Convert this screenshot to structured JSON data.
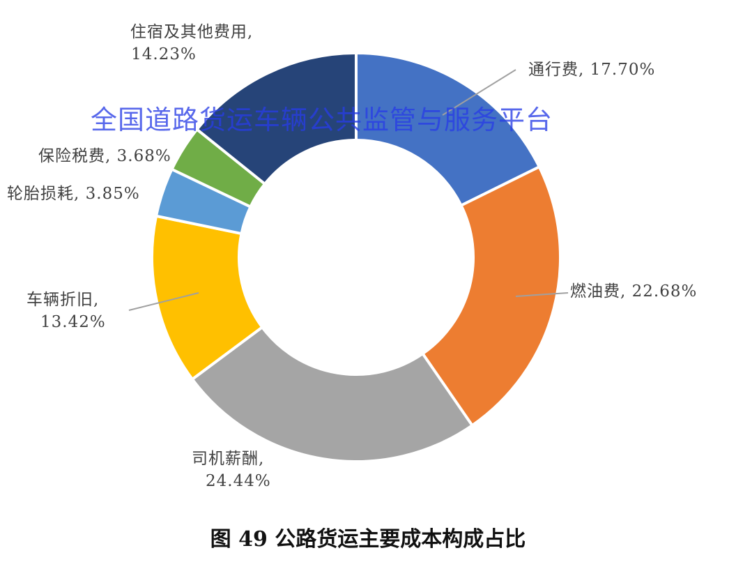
{
  "chart_data": {
    "type": "pie",
    "donut": true,
    "title": "图 49  公路货运主要成本构成占比",
    "unit": "%",
    "slices": [
      {
        "name": "通行费",
        "value": 17.7,
        "label": "17.70%",
        "color": "#4472C4"
      },
      {
        "name": "燃油费",
        "value": 22.68,
        "label": "22.68%",
        "color": "#ED7D31"
      },
      {
        "name": "司机薪酬",
        "value": 24.44,
        "label": "24.44%",
        "color": "#A5A5A5"
      },
      {
        "name": "车辆折旧",
        "value": 13.42,
        "label": "13.42%",
        "color": "#FFC000"
      },
      {
        "name": "轮胎损耗",
        "value": 3.85,
        "label": "3.85%",
        "color": "#5B9BD5"
      },
      {
        "name": "保险税费",
        "value": 3.68,
        "label": "3.68%",
        "color": "#70AD47"
      },
      {
        "name": "住宿及其他费用",
        "value": 14.23,
        "label": "14.23%",
        "color": "#264478"
      }
    ],
    "start": "top",
    "direction": "clockwise",
    "legend": "none"
  },
  "watermark": "全国道路货运车辆公共监管与服务平台"
}
